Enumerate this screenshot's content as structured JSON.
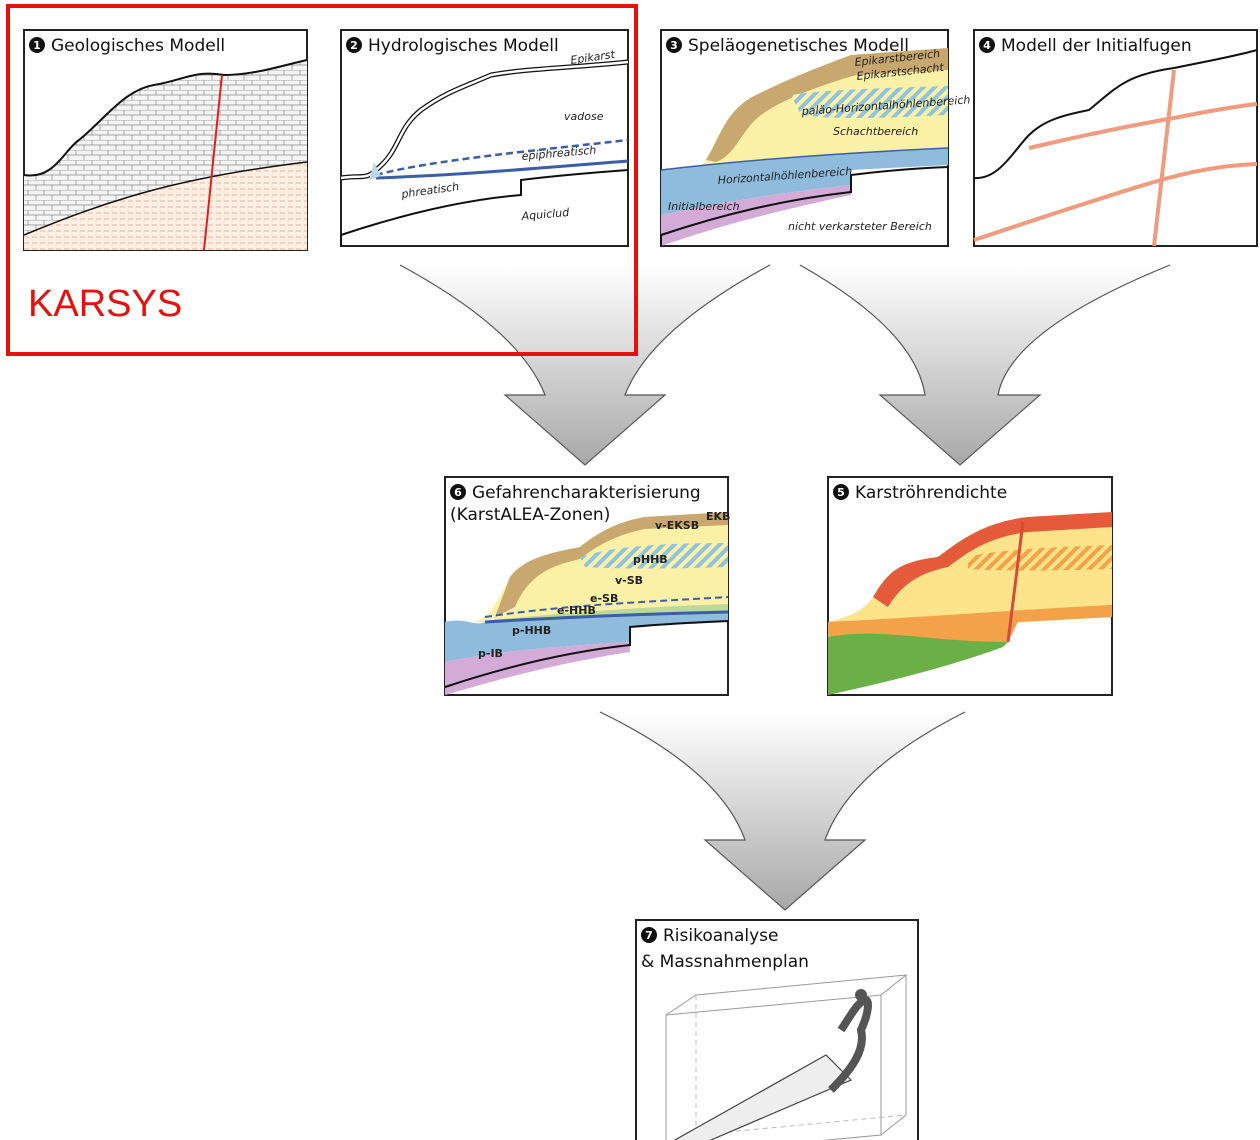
{
  "karsys_label": "KARSYS",
  "panels": [
    {
      "number": "1",
      "title": "Geologisches Modell"
    },
    {
      "number": "2",
      "title": "Hydrologisches Modell",
      "labels": [
        "Epikarst",
        "vadose",
        "epiphreatisch",
        "phreatisch",
        "Aquiclud"
      ]
    },
    {
      "number": "3",
      "title": "Speläogenetisches Modell",
      "labels": [
        "Epikarstbereich",
        "Epikarstschacht",
        "paläo-Horizontalhöhlenbereich",
        "Schachtbereich",
        "Horizontalhöhlenbereich",
        "Initialbereich",
        "nicht verkarsteter Bereich"
      ]
    },
    {
      "number": "4",
      "title": "Modell der Initialfugen"
    },
    {
      "number": "6",
      "title": "Gefahrencharakterisierung",
      "subtitle": "(KarstALEA-Zonen)",
      "labels": [
        "EKB",
        "v-EKSB",
        "pHHB",
        "v-SB",
        "e-SB",
        "e-HHB",
        "p-HHB",
        "p-IB"
      ]
    },
    {
      "number": "5",
      "title": "Karströhrendichte"
    },
    {
      "number": "7",
      "title": "Risikoanalyse",
      "subtitle": "& Massnahmenplan"
    }
  ]
}
